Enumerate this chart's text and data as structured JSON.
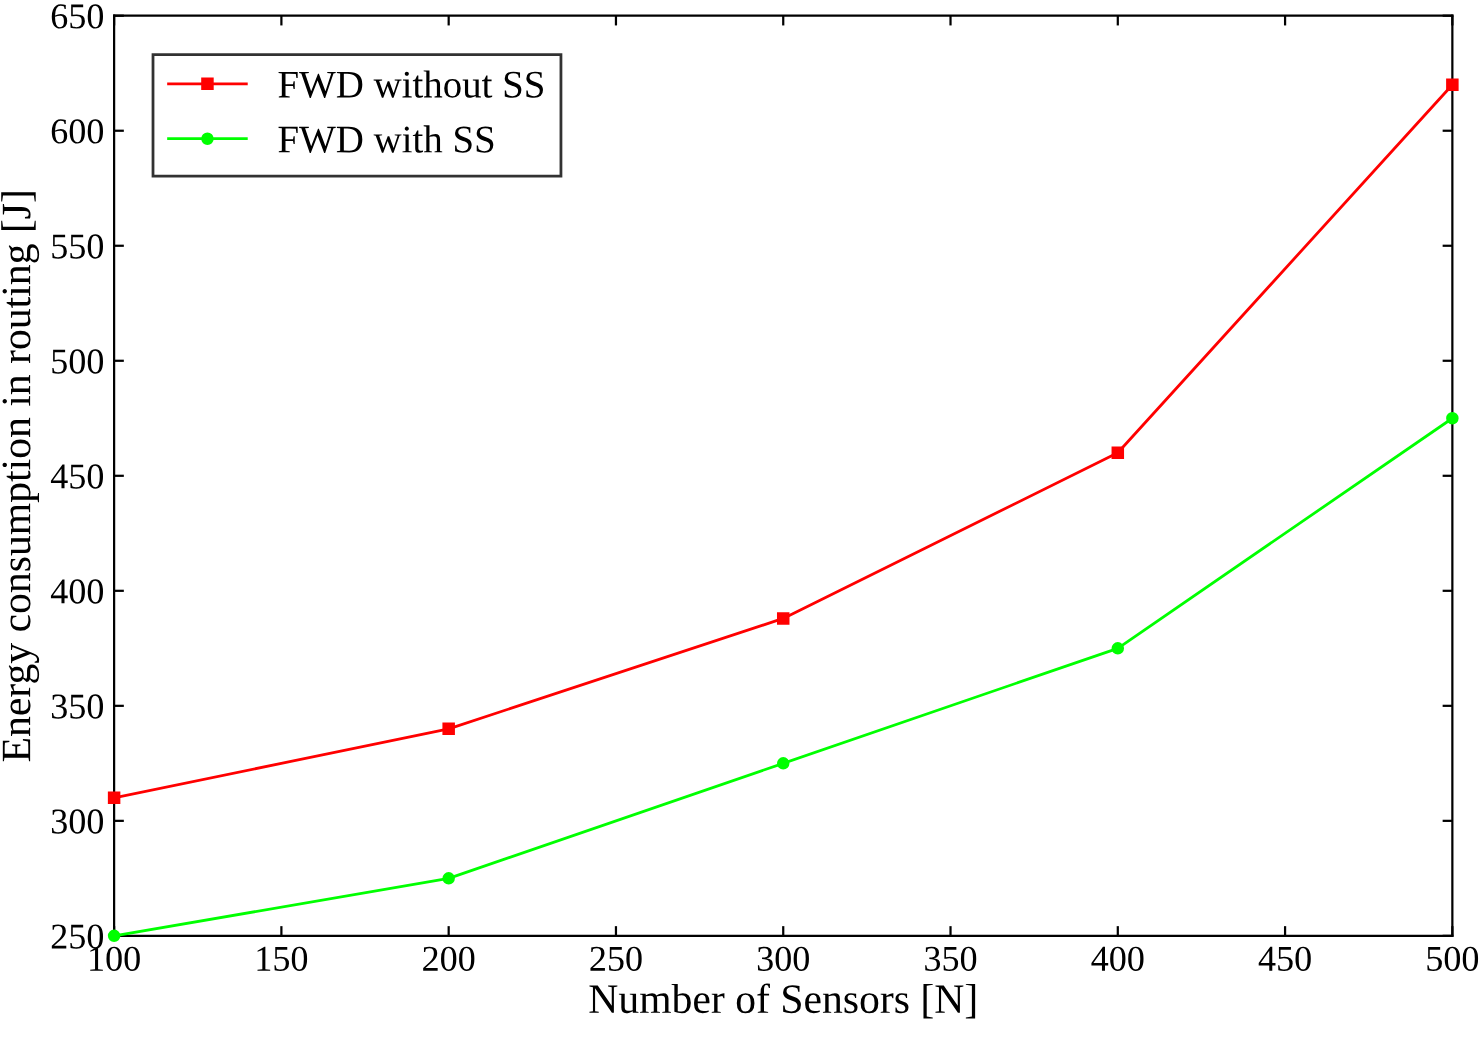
{
  "chart_data": {
    "type": "line",
    "xlabel": "Number of Sensors [N]",
    "ylabel": "Energy consumption in routing [J]",
    "x": [
      100,
      200,
      300,
      400,
      500
    ],
    "series": [
      {
        "name": "FWD without SS",
        "color": "#ff0000",
        "values": [
          310,
          340,
          388,
          460,
          620
        ],
        "marker": "square"
      },
      {
        "name": "FWD with SS",
        "color": "#00ff00",
        "values": [
          250,
          275,
          325,
          375,
          475
        ],
        "marker": "circle"
      }
    ],
    "xlim": [
      100,
      500
    ],
    "xticks": [
      100,
      150,
      200,
      250,
      300,
      350,
      400,
      450,
      500
    ],
    "ylim": [
      250,
      650
    ],
    "yticks": [
      250,
      300,
      350,
      400,
      450,
      500,
      550,
      600,
      650
    ],
    "grid": false,
    "legend": "top left",
    "line_style": "solid"
  }
}
